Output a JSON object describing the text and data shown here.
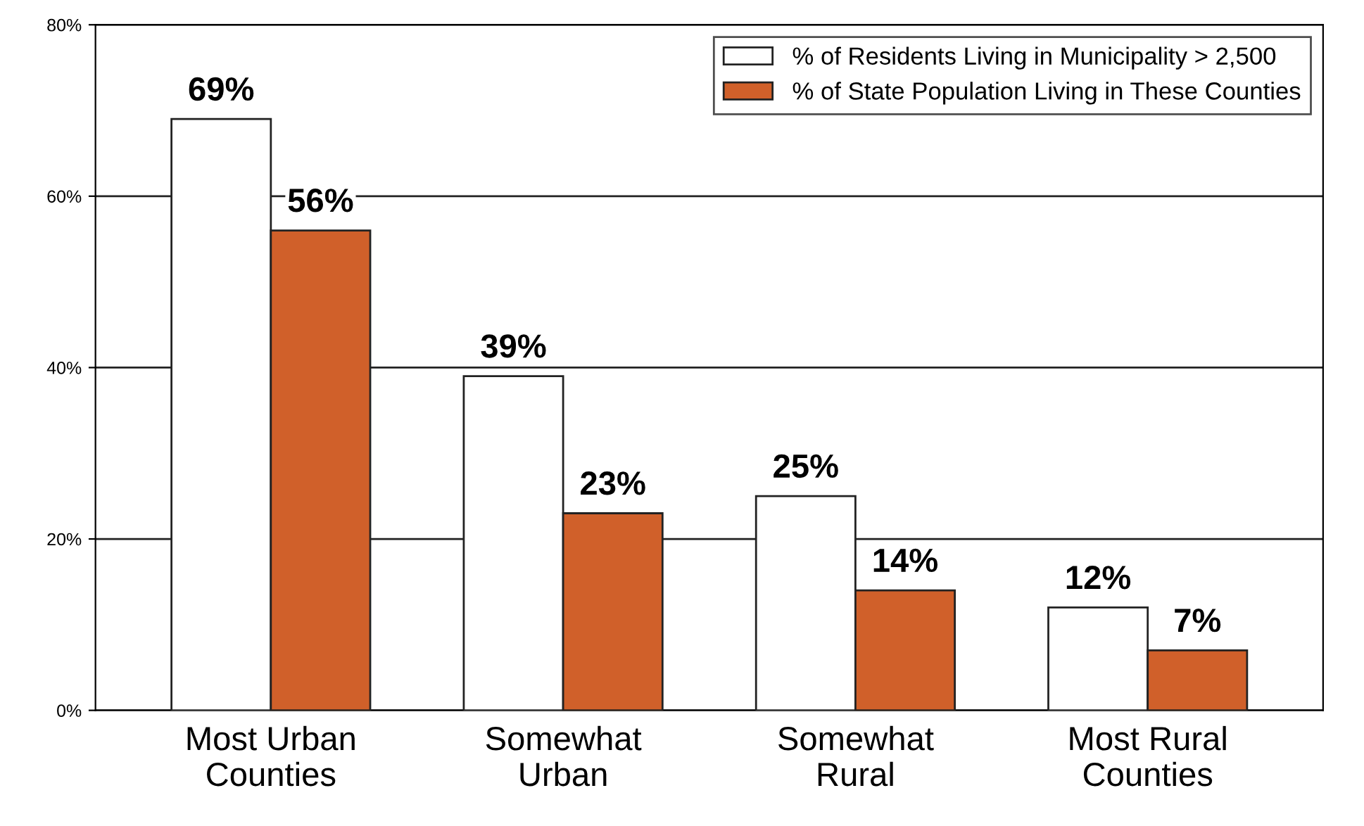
{
  "chart_data": {
    "type": "bar",
    "categories": [
      "Most Urban\nCounties",
      "Somewhat\nUrban",
      "Somewhat\nRural",
      "Most Rural\nCounties"
    ],
    "series": [
      {
        "name": "% of Residents Living in Municipality > 2,500",
        "color": "#ffffff",
        "values": [
          69,
          39,
          25,
          12
        ],
        "value_labels": [
          "69%",
          "39%",
          "25%",
          "12%"
        ]
      },
      {
        "name": "% of State Population Living in These Counties",
        "color": "#d0602a",
        "values": [
          56,
          23,
          14,
          7
        ],
        "value_labels": [
          "56%",
          "23%",
          "14%",
          "7%"
        ]
      }
    ],
    "ylim": [
      0,
      80
    ],
    "yticks": [
      {
        "value": 0,
        "label": "0%"
      },
      {
        "value": 20,
        "label": "20%"
      },
      {
        "value": 40,
        "label": "40%"
      },
      {
        "value": 60,
        "label": "60%"
      },
      {
        "value": 80,
        "label": "80%"
      }
    ],
    "grid": "y",
    "legend": "top right"
  }
}
